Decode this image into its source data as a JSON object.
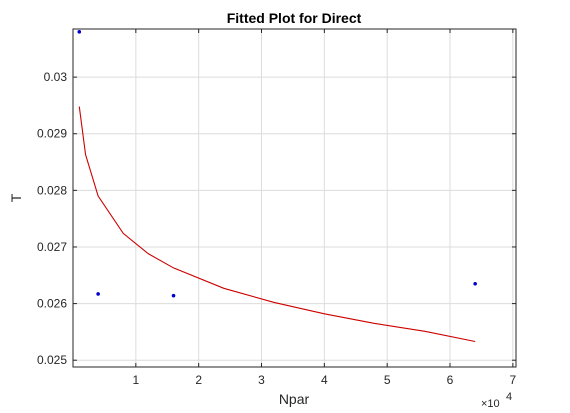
{
  "chart_data": {
    "type": "scatter",
    "title": "Fitted Plot for Direct",
    "xlabel": "Npar",
    "ylabel": "T",
    "x_multiplier_label": "×10",
    "x_multiplier_exponent": "4",
    "xlim": [
      0,
      70500
    ],
    "ylim": [
      0.02488,
      0.03085
    ],
    "xticks": [
      10000,
      20000,
      30000,
      40000,
      50000,
      60000,
      70000
    ],
    "xtick_labels": [
      "1",
      "2",
      "3",
      "4",
      "5",
      "6",
      "7"
    ],
    "yticks": [
      0.025,
      0.026,
      0.027,
      0.028,
      0.029,
      0.03
    ],
    "ytick_labels": [
      "0.025",
      "0.026",
      "0.027",
      "0.028",
      "0.029",
      "0.03"
    ],
    "grid": true,
    "points": {
      "x": [
        1000,
        4000,
        16000,
        64000
      ],
      "y": [
        0.0308,
        0.02617,
        0.02614,
        0.02635
      ],
      "color": "#0000cc"
    },
    "fit_curve": {
      "x": [
        1000,
        2000,
        4000,
        8000,
        12000,
        16000,
        24000,
        32000,
        40000,
        48000,
        56000,
        64000
      ],
      "y": [
        0.02948,
        0.02863,
        0.0279,
        0.02724,
        0.02688,
        0.02663,
        0.02627,
        0.02602,
        0.02582,
        0.02565,
        0.02551,
        0.02533
      ],
      "color": "#cc0000"
    }
  }
}
